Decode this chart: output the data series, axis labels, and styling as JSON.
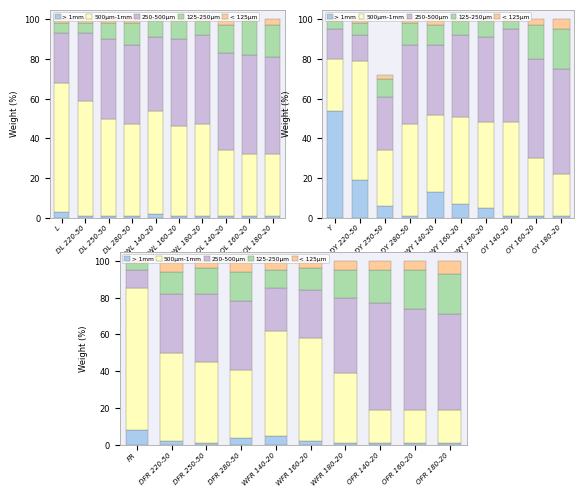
{
  "colors": {
    "gt1mm": "#aaccee",
    "500_1mm": "#ffffbb",
    "250_500": "#ccbbdd",
    "125_250": "#aaddaa",
    "lt125": "#ffcc99"
  },
  "legend_labels": [
    "> 1mm",
    "500μm-1mm",
    "250-500μm",
    "125-250μm",
    "< 125μm"
  ],
  "subplot1": {
    "title": "",
    "categories": [
      "L",
      "DL 220-50",
      "DL 250-50",
      "DL 280-50",
      "WL 140-20",
      "WL 160-20",
      "WL 180-20",
      "OL 140-20",
      "OL 160-20",
      "OL 180-20"
    ],
    "gt1mm": [
      3,
      1,
      1,
      1,
      2,
      1,
      1,
      1,
      1,
      1
    ],
    "500_1mm": [
      65,
      58,
      49,
      46,
      52,
      45,
      46,
      33,
      31,
      31
    ],
    "250_500": [
      25,
      34,
      40,
      40,
      37,
      44,
      45,
      49,
      50,
      49
    ],
    "125_250": [
      5,
      5,
      8,
      11,
      8,
      9,
      7,
      14,
      17,
      16
    ],
    "lt125": [
      2,
      2,
      2,
      2,
      1,
      1,
      1,
      3,
      1,
      3
    ]
  },
  "subplot2": {
    "title": "",
    "categories": [
      "Y",
      "DY 220-50",
      "DY 250-50",
      "DY 280-50",
      "WY 140-20",
      "WY 160-20",
      "WY 180-20",
      "OY 140-20",
      "OY 160-20",
      "OY 180-20"
    ],
    "gt1mm": [
      54,
      19,
      6,
      1,
      13,
      7,
      5,
      1,
      1,
      1
    ],
    "500_1mm": [
      26,
      60,
      28,
      46,
      39,
      44,
      43,
      47,
      29,
      21
    ],
    "250_500": [
      15,
      13,
      27,
      40,
      35,
      41,
      43,
      47,
      50,
      53
    ],
    "125_250": [
      4,
      6,
      9,
      11,
      10,
      7,
      8,
      4,
      17,
      20
    ],
    "lt125": [
      1,
      2,
      2,
      2,
      3,
      1,
      1,
      1,
      3,
      5
    ]
  },
  "subplot3": {
    "title": "",
    "categories": [
      "FR",
      "DFR 220-50",
      "DFR 250-50",
      "DFR 280-50",
      "WFR 140-20",
      "WFR 160-20",
      "WFR 180-20",
      "OFR 140-20",
      "OFR 160-20",
      "OFR 180-20"
    ],
    "gt1mm": [
      8,
      2,
      1,
      4,
      5,
      2,
      1,
      1,
      1,
      1
    ],
    "500_1mm": [
      77,
      48,
      44,
      37,
      57,
      56,
      38,
      18,
      18,
      18
    ],
    "250_500": [
      10,
      32,
      37,
      37,
      23,
      26,
      41,
      58,
      55,
      52
    ],
    "125_250": [
      4,
      12,
      14,
      16,
      10,
      12,
      15,
      18,
      21,
      22
    ],
    "lt125": [
      1,
      6,
      4,
      6,
      5,
      4,
      5,
      5,
      5,
      7
    ]
  },
  "ylabel": "Weight (%)",
  "ylim": [
    0,
    105
  ],
  "yticks": [
    0,
    20,
    40,
    60,
    80,
    100
  ],
  "bg_color": "#f0f0f8",
  "spine_color": "#aaaaaa"
}
